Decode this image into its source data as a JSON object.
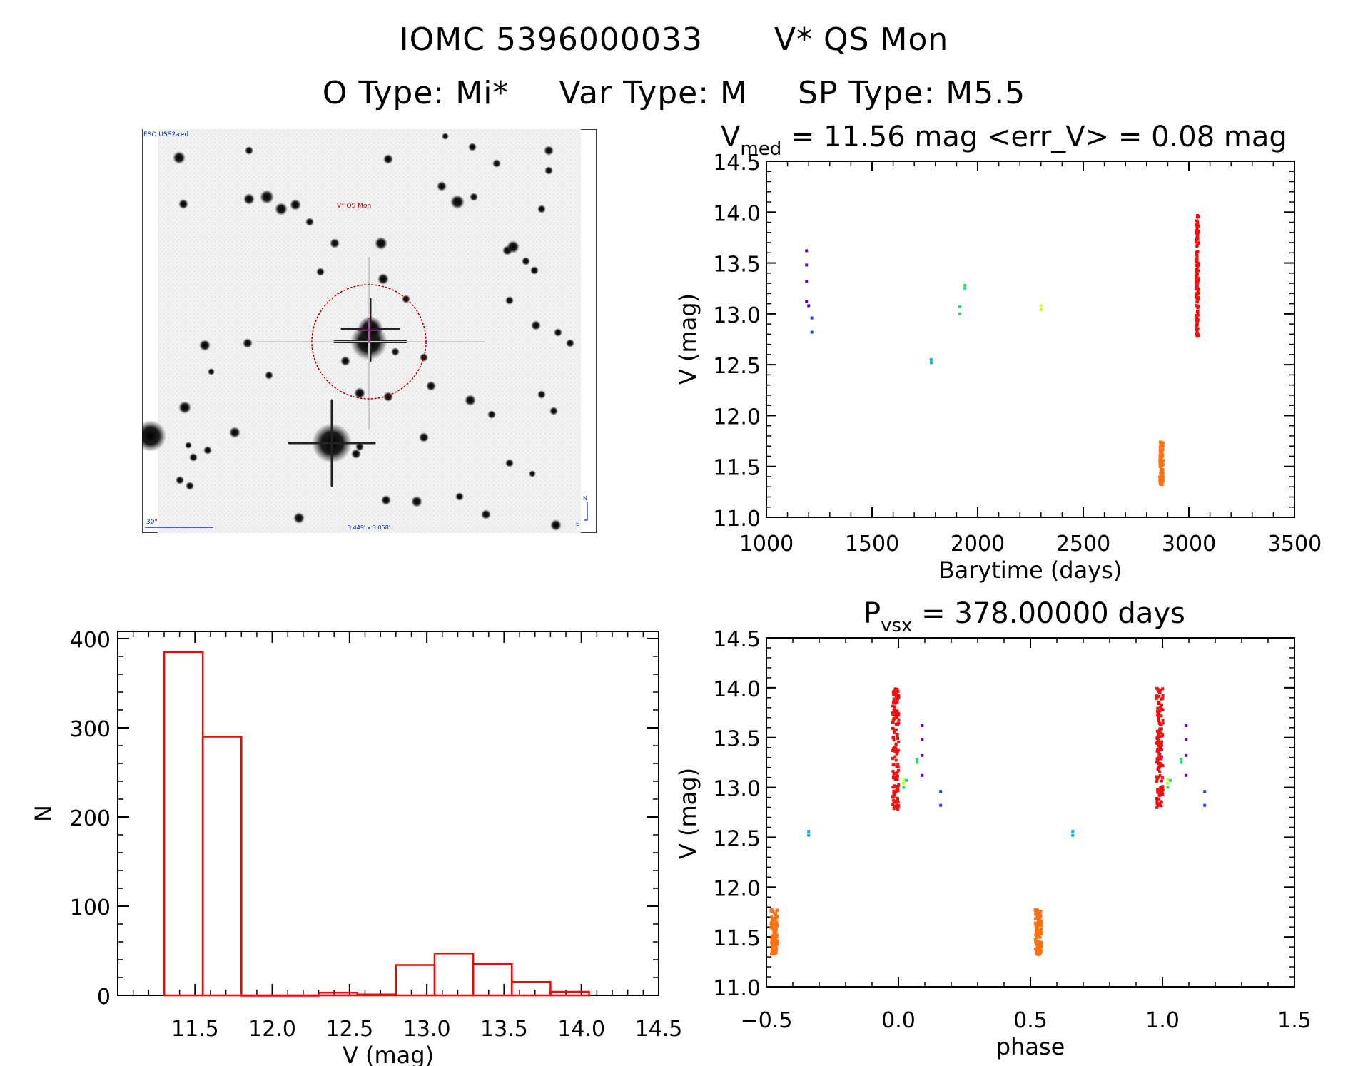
{
  "header": {
    "line1": {
      "iomc": "IOMC 5396000033",
      "name": "V* QS Mon"
    },
    "line2": {
      "otype": "O Type: Mi*",
      "vartype": "Var Type: M",
      "sptype": "SP Type: M5.5"
    }
  },
  "stamp": {
    "survey_label": "ESO USS2-red",
    "target_label": "V* QS Mon",
    "scale_label": "30\"",
    "fov_label": "3.449' x 3.058'",
    "north_label": "N",
    "east_label": "E"
  },
  "colors": {
    "hist": "#ff0000",
    "purple": "#6a00c8",
    "blue": "#1e3cdc",
    "cyan": "#00b4dc",
    "green": "#20e070",
    "yellow": "#c8ff30",
    "orange": "#ff7010",
    "red": "#ee1010"
  },
  "chart_data": [
    {
      "id": "lightcurve",
      "type": "scatter",
      "title_main": "V",
      "title_sub": "med",
      "title_rest": " = 11.56 mag <err_V> = 0.08 mag",
      "xlabel": "Barytime (days)",
      "ylabel": "V (mag)",
      "xlim": [
        1000,
        3500
      ],
      "ylim": [
        14.5,
        11.0
      ],
      "xticks": [
        "1000",
        "1500",
        "2000",
        "2500",
        "3000",
        "3500"
      ],
      "yticks": [
        "11.0",
        "11.5",
        "12.0",
        "12.5",
        "13.0",
        "13.5",
        "14.0",
        "14.5"
      ],
      "series": [
        {
          "name": "purple",
          "color": "#6a00c8",
          "points": [
            [
              1190,
              13.62
            ],
            [
              1190,
              13.48
            ],
            [
              1190,
              13.32
            ],
            [
              1190,
              13.12
            ],
            [
              1200,
              13.08
            ]
          ]
        },
        {
          "name": "blue",
          "color": "#1e3cdc",
          "points": [
            [
              1215,
              12.82
            ],
            [
              1215,
              12.96
            ]
          ]
        },
        {
          "name": "cyan",
          "color": "#00b4dc",
          "points": [
            [
              1780,
              12.52
            ],
            [
              1780,
              12.55
            ]
          ]
        },
        {
          "name": "green",
          "color": "#20e070",
          "points": [
            [
              1915,
              13.0
            ],
            [
              1915,
              13.07
            ],
            [
              1940,
              13.25
            ],
            [
              1940,
              13.28
            ]
          ]
        },
        {
          "name": "yellow",
          "color": "#c8ff30",
          "points": [
            [
              2300,
              13.04
            ],
            [
              2300,
              13.08
            ]
          ]
        },
        {
          "name": "orange",
          "color": "#ff7010",
          "band": {
            "x": 2870,
            "xspread": 8,
            "ymin": 11.32,
            "ymax": 11.76,
            "n": 90
          }
        },
        {
          "name": "red",
          "color": "#ee1010",
          "band": {
            "x": 3040,
            "xspread": 6,
            "ymin": 12.78,
            "ymax": 14.0,
            "n": 140
          }
        }
      ]
    },
    {
      "id": "histogram",
      "type": "bar",
      "xlabel": "V (mag)",
      "ylabel": "N",
      "xlim": [
        11.0,
        14.5
      ],
      "ylim": [
        0,
        400
      ],
      "xticks": [
        "11.5",
        "12.0",
        "12.5",
        "13.0",
        "13.5",
        "14.0",
        "14.5"
      ],
      "yticks": [
        "0",
        "100",
        "200",
        "300",
        "400"
      ],
      "bins": [
        {
          "from": 11.3,
          "to": 11.55,
          "count": 385
        },
        {
          "from": 11.55,
          "to": 11.8,
          "count": 290
        },
        {
          "from": 11.8,
          "to": 12.05,
          "count": 0
        },
        {
          "from": 12.05,
          "to": 12.3,
          "count": 0
        },
        {
          "from": 12.3,
          "to": 12.55,
          "count": 3
        },
        {
          "from": 12.55,
          "to": 12.8,
          "count": 1
        },
        {
          "from": 12.8,
          "to": 13.05,
          "count": 34
        },
        {
          "from": 13.05,
          "to": 13.3,
          "count": 47
        },
        {
          "from": 13.3,
          "to": 13.55,
          "count": 35
        },
        {
          "from": 13.55,
          "to": 13.8,
          "count": 15
        },
        {
          "from": 13.8,
          "to": 14.05,
          "count": 4
        }
      ]
    },
    {
      "id": "phased",
      "type": "scatter",
      "title_main": "P",
      "title_sub": "vsx",
      "title_rest": " = 378.00000 days",
      "xlabel": "phase",
      "ylabel": "V (mag)",
      "xlim": [
        -0.5,
        1.5
      ],
      "ylim": [
        14.5,
        11.0
      ],
      "xticks": [
        "−0.5",
        "0.0",
        "0.5",
        "1.0",
        "1.5"
      ],
      "yticks": [
        "11.0",
        "11.5",
        "12.0",
        "12.5",
        "13.0",
        "13.5",
        "14.0",
        "14.5"
      ],
      "series": [
        {
          "name": "orange",
          "color": "#ff7010",
          "bands": [
            {
              "x": -0.47,
              "xspread": 0.012,
              "ymin": 11.32,
              "ymax": 11.78,
              "n": 100
            },
            {
              "x": 0.53,
              "xspread": 0.012,
              "ymin": 11.32,
              "ymax": 11.78,
              "n": 100
            }
          ]
        },
        {
          "name": "cyan",
          "color": "#00b4dc",
          "points": [
            [
              -0.34,
              12.52
            ],
            [
              -0.34,
              12.56
            ],
            [
              0.66,
              12.52
            ],
            [
              0.66,
              12.56
            ]
          ]
        },
        {
          "name": "red",
          "color": "#ee1010",
          "bands": [
            {
              "x": -0.01,
              "xspread": 0.012,
              "ymin": 12.78,
              "ymax": 14.0,
              "n": 150
            },
            {
              "x": 0.99,
              "xspread": 0.012,
              "ymin": 12.78,
              "ymax": 14.0,
              "n": 150
            }
          ]
        },
        {
          "name": "yellow",
          "color": "#c8ff30",
          "points": [
            [
              0.02,
              13.04
            ],
            [
              0.02,
              13.08
            ],
            [
              1.02,
              13.04
            ],
            [
              1.02,
              13.08
            ]
          ]
        },
        {
          "name": "green",
          "color": "#20e070",
          "points": [
            [
              0.02,
              13.0
            ],
            [
              0.03,
              13.07
            ],
            [
              0.07,
              13.25
            ],
            [
              0.07,
              13.28
            ],
            [
              1.02,
              13.0
            ],
            [
              1.03,
              13.07
            ],
            [
              1.07,
              13.25
            ],
            [
              1.07,
              13.28
            ]
          ]
        },
        {
          "name": "purple",
          "color": "#6a00c8",
          "points": [
            [
              0.09,
              13.62
            ],
            [
              0.09,
              13.48
            ],
            [
              0.09,
              13.32
            ],
            [
              0.09,
              13.12
            ],
            [
              1.09,
              13.62
            ],
            [
              1.09,
              13.48
            ],
            [
              1.09,
              13.32
            ],
            [
              1.09,
              13.12
            ]
          ]
        },
        {
          "name": "blue",
          "color": "#1e3cdc",
          "points": [
            [
              0.16,
              12.82
            ],
            [
              0.16,
              12.96
            ],
            [
              1.16,
              12.82
            ],
            [
              1.16,
              12.96
            ]
          ]
        }
      ]
    }
  ]
}
